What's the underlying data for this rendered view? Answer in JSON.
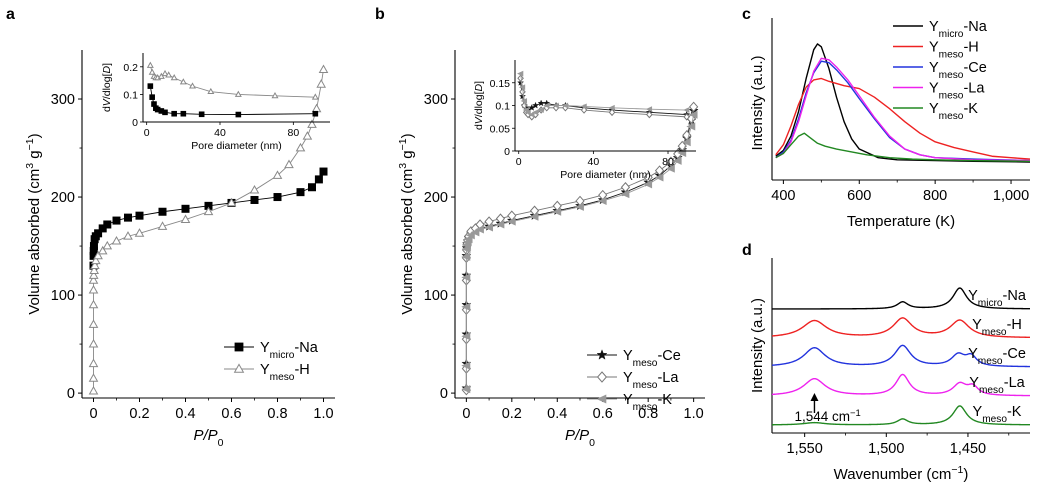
{
  "chart_data": [
    {
      "panel": "a",
      "type": "scatter",
      "xlabel": "P/P0",
      "ylabel": "Volume absorbed (cm3 g−1)",
      "xlim": [
        -0.05,
        1.05
      ],
      "ylim": [
        -5,
        350
      ],
      "xticks": [
        "0",
        "0.2",
        "0.4",
        "0.6",
        "0.8",
        "1.0"
      ],
      "yticks": [
        "0",
        "100",
        "200",
        "300"
      ],
      "legend_position": "lower-right",
      "series": [
        {
          "name": "Ymicro-Na",
          "label_main": "Y",
          "label_sub": "micro",
          "label_suffix": "-Na",
          "marker": "square-filled",
          "color": "#000000",
          "x": [
            0,
            0.0005,
            0.001,
            0.002,
            0.005,
            0.01,
            0.02,
            0.04,
            0.06,
            0.1,
            0.15,
            0.2,
            0.3,
            0.4,
            0.5,
            0.6,
            0.7,
            0.8,
            0.9,
            0.95,
            0.98,
            1.0
          ],
          "y": [
            130,
            140,
            145,
            150,
            157,
            160,
            163,
            168,
            172,
            176,
            179,
            181,
            185,
            188,
            191,
            194,
            197,
            200,
            205,
            210,
            218,
            226
          ]
        },
        {
          "name": "Ymeso-H",
          "label_main": "Y",
          "label_sub": "meso",
          "label_suffix": "-H",
          "marker": "triangle-open",
          "color": "#888888",
          "x": [
            0,
            0,
            0,
            0,
            0,
            0,
            0,
            0,
            0.001,
            0.003,
            0.006,
            0.01,
            0.02,
            0.04,
            0.06,
            0.1,
            0.15,
            0.2,
            0.3,
            0.4,
            0.5,
            0.6,
            0.7,
            0.8,
            0.85,
            0.9,
            0.93,
            0.95,
            0.97,
            0.99,
            1.0
          ],
          "y": [
            2,
            15,
            30,
            50,
            70,
            90,
            105,
            115,
            120,
            125,
            130,
            135,
            140,
            145,
            150,
            155,
            160,
            163,
            170,
            177,
            185,
            194,
            207,
            222,
            233,
            250,
            262,
            274,
            290,
            315,
            330
          ]
        }
      ],
      "inset": {
        "xlabel": "Pore diameter (nm)",
        "ylabel": "dV/dlog[D]",
        "xlim": [
          -2,
          100
        ],
        "ylim": [
          0,
          0.25
        ],
        "xticks": [
          "0",
          "40",
          "80"
        ],
        "yticks": [
          "0",
          "0.1",
          "0.2"
        ],
        "series": [
          {
            "name": "Ymicro-Na",
            "x": [
              2,
              3,
              4,
              5,
              6,
              8,
              10,
              15,
              20,
              30,
              50,
              92
            ],
            "y": [
              0.13,
              0.09,
              0.065,
              0.05,
              0.045,
              0.04,
              0.035,
              0.03,
              0.03,
              0.028,
              0.027,
              0.03
            ]
          },
          {
            "name": "Ymeso-H",
            "x": [
              2,
              3,
              4,
              5,
              6,
              8,
              10,
              12,
              15,
              20,
              25,
              35,
              50,
              70,
              92
            ],
            "y": [
              0.205,
              0.18,
              0.165,
              0.16,
              0.16,
              0.165,
              0.175,
              0.17,
              0.16,
              0.145,
              0.13,
              0.11,
              0.1,
              0.095,
              0.09
            ]
          }
        ]
      }
    },
    {
      "panel": "b",
      "type": "scatter",
      "xlabel": "P/P0",
      "ylabel": "Volume absorbed (cm3 g−1)",
      "xlim": [
        -0.05,
        1.05
      ],
      "ylim": [
        -5,
        350
      ],
      "xticks": [
        "0",
        "0.2",
        "0.4",
        "0.6",
        "0.8",
        "1.0"
      ],
      "yticks": [
        "0",
        "100",
        "200",
        "300"
      ],
      "legend_position": "lower-right",
      "series": [
        {
          "name": "Ymeso-Ce",
          "label_main": "Y",
          "label_sub": "meso",
          "label_suffix": "-Ce",
          "marker": "star-filled",
          "color": "#111111",
          "x": [
            0,
            0,
            0,
            0,
            0,
            0,
            0.001,
            0.003,
            0.006,
            0.01,
            0.02,
            0.04,
            0.06,
            0.1,
            0.15,
            0.2,
            0.3,
            0.4,
            0.5,
            0.6,
            0.7,
            0.8,
            0.85,
            0.9,
            0.93,
            0.95,
            0.97,
            0.99,
            1.0
          ],
          "y": [
            5,
            30,
            60,
            90,
            120,
            140,
            148,
            152,
            155,
            158,
            162,
            165,
            168,
            170,
            173,
            176,
            181,
            186,
            191,
            197,
            205,
            215,
            222,
            232,
            240,
            248,
            260,
            278,
            288
          ]
        },
        {
          "name": "Ymeso-La",
          "label_main": "Y",
          "label_sub": "meso",
          "label_suffix": "-La",
          "marker": "diamond-open",
          "color": "#777777",
          "x": [
            0,
            0,
            0,
            0,
            0,
            0,
            0.001,
            0.003,
            0.006,
            0.01,
            0.02,
            0.04,
            0.06,
            0.1,
            0.15,
            0.2,
            0.3,
            0.4,
            0.5,
            0.6,
            0.7,
            0.8,
            0.85,
            0.9,
            0.93,
            0.95,
            0.97,
            0.99,
            1.0
          ],
          "y": [
            3,
            25,
            55,
            85,
            115,
            138,
            146,
            152,
            156,
            160,
            165,
            168,
            172,
            175,
            178,
            181,
            186,
            191,
            196,
            202,
            210,
            220,
            227,
            236,
            244,
            252,
            263,
            280,
            292
          ]
        },
        {
          "name": "Ymeso-K",
          "label_main": "Y",
          "label_sub": "meso",
          "label_suffix": "-K",
          "marker": "triangle-left-filled",
          "color": "#999999",
          "x": [
            0,
            0,
            0,
            0,
            0,
            0,
            0.001,
            0.003,
            0.006,
            0.01,
            0.02,
            0.04,
            0.06,
            0.1,
            0.15,
            0.2,
            0.3,
            0.4,
            0.5,
            0.6,
            0.7,
            0.8,
            0.85,
            0.9,
            0.93,
            0.95,
            0.97,
            0.99,
            1.0
          ],
          "y": [
            4,
            28,
            58,
            88,
            118,
            139,
            147,
            151,
            154,
            157,
            161,
            164,
            167,
            169,
            172,
            175,
            180,
            185,
            190,
            196,
            203,
            213,
            220,
            229,
            237,
            245,
            256,
            272,
            284
          ]
        }
      ],
      "inset": {
        "xlabel": "Pore diameter (nm)",
        "ylabel": "dV/dlog[D]",
        "xlim": [
          -2,
          95
        ],
        "ylim": [
          0,
          0.2
        ],
        "xticks": [
          "0",
          "40",
          "80"
        ],
        "yticks": [
          "0",
          "0.05",
          "0.1",
          "0.15"
        ],
        "series": [
          {
            "name": "Ymeso-Ce",
            "x": [
              1,
              2,
              3,
              4,
              5,
              7,
              9,
              12,
              15,
              20,
              25,
              35,
              50,
              70,
              90
            ],
            "y": [
              0.15,
              0.12,
              0.1,
              0.095,
              0.09,
              0.095,
              0.1,
              0.105,
              0.105,
              0.1,
              0.1,
              0.095,
              0.09,
              0.085,
              0.08
            ]
          },
          {
            "name": "Ymeso-La",
            "x": [
              1,
              2,
              3,
              4,
              5,
              7,
              9,
              12,
              15,
              20,
              25,
              35,
              50,
              70,
              90
            ],
            "y": [
              0.16,
              0.13,
              0.1,
              0.085,
              0.08,
              0.075,
              0.08,
              0.09,
              0.095,
              0.095,
              0.095,
              0.09,
              0.085,
              0.08,
              0.075
            ]
          },
          {
            "name": "Ymeso-K",
            "x": [
              1,
              2,
              3,
              4,
              5,
              7,
              9,
              12,
              15,
              20,
              25,
              35,
              50,
              70,
              90
            ],
            "y": [
              0.17,
              0.14,
              0.11,
              0.09,
              0.085,
              0.08,
              0.085,
              0.09,
              0.1,
              0.1,
              0.1,
              0.098,
              0.095,
              0.092,
              0.09
            ]
          }
        ]
      }
    },
    {
      "panel": "c",
      "type": "line",
      "xlabel": "Temperature (K)",
      "ylabel": "Intensity (a.u.)",
      "xlim": [
        370,
        1050
      ],
      "xticks": [
        "400",
        "600",
        "800",
        "1,000"
      ],
      "legend_position": "top-right",
      "series": [
        {
          "name": "Ymicro-Na",
          "label_main": "Y",
          "label_sub": "micro",
          "label_suffix": "-Na",
          "color": "#000000",
          "x": [
            380,
            400,
            420,
            440,
            460,
            480,
            490,
            500,
            520,
            540,
            560,
            580,
            600,
            650,
            700,
            800,
            900,
            1050
          ],
          "y": [
            0.04,
            0.08,
            0.18,
            0.35,
            0.58,
            0.78,
            0.82,
            0.8,
            0.65,
            0.45,
            0.28,
            0.16,
            0.09,
            0.03,
            0.015,
            0.01,
            0.005,
            0
          ]
        },
        {
          "name": "Ymeso-H",
          "label_main": "Y",
          "label_sub": "meso",
          "label_suffix": "-H",
          "color": "#ee2222",
          "x": [
            380,
            400,
            420,
            440,
            460,
            480,
            500,
            520,
            560,
            600,
            640,
            680,
            720,
            760,
            800,
            850,
            900,
            950,
            1000,
            1050
          ],
          "y": [
            0.05,
            0.12,
            0.25,
            0.4,
            0.52,
            0.57,
            0.58,
            0.56,
            0.53,
            0.51,
            0.45,
            0.37,
            0.28,
            0.2,
            0.14,
            0.1,
            0.07,
            0.04,
            0.03,
            0.02
          ]
        },
        {
          "name": "Ymeso-Ce",
          "label_main": "Y",
          "label_sub": "meso",
          "label_suffix": "-Ce",
          "color": "#2233dd",
          "x": [
            380,
            400,
            420,
            440,
            460,
            480,
            500,
            520,
            540,
            570,
            600,
            640,
            680,
            720,
            760,
            800,
            900,
            1050
          ],
          "y": [
            0.03,
            0.07,
            0.15,
            0.3,
            0.48,
            0.62,
            0.7,
            0.69,
            0.64,
            0.55,
            0.44,
            0.3,
            0.17,
            0.09,
            0.05,
            0.03,
            0.02,
            0.01
          ]
        },
        {
          "name": "Ymeso-La",
          "label_main": "Y",
          "label_sub": "meso",
          "label_suffix": "-La",
          "color": "#ee22ee",
          "x": [
            380,
            400,
            420,
            440,
            460,
            480,
            500,
            520,
            540,
            570,
            600,
            640,
            680,
            720,
            760,
            800,
            900,
            1050
          ],
          "y": [
            0.03,
            0.06,
            0.14,
            0.28,
            0.46,
            0.63,
            0.72,
            0.71,
            0.66,
            0.57,
            0.46,
            0.31,
            0.18,
            0.09,
            0.05,
            0.03,
            0.015,
            0.01
          ]
        },
        {
          "name": "Ymeso-K",
          "label_main": "Y",
          "label_sub": "meso",
          "label_suffix": "-K",
          "color": "#228822",
          "x": [
            380,
            400,
            420,
            440,
            455,
            470,
            490,
            510,
            540,
            580,
            620,
            680,
            740,
            800,
            900,
            1050
          ],
          "y": [
            0.03,
            0.06,
            0.12,
            0.18,
            0.2,
            0.17,
            0.13,
            0.11,
            0.09,
            0.07,
            0.05,
            0.03,
            0.02,
            0.015,
            0.01,
            0.005
          ]
        }
      ]
    },
    {
      "panel": "d",
      "type": "line",
      "xlabel": "Wavenumber (cm−1)",
      "ylabel": "Intensity (a.u.)",
      "xlim": [
        1570,
        1412
      ],
      "xticks": [
        "1,550",
        "1,500",
        "1,450"
      ],
      "annotation": {
        "text": "1,544 cm",
        "superscript": "−1",
        "x": 1544
      },
      "series": [
        {
          "name": "Ymicro-Na",
          "label_main": "Y",
          "label_sub": "micro",
          "label_suffix": "-Na",
          "color": "#000000",
          "offset": 4,
          "peaks": [
            [
              1490,
              0.18,
              4
            ],
            [
              1455,
              0.55,
              5
            ]
          ]
        },
        {
          "name": "Ymeso-H",
          "label_main": "Y",
          "label_sub": "meso",
          "label_suffix": "-H",
          "color": "#ee2222",
          "offset": 3,
          "peaks": [
            [
              1544,
              0.45,
              9
            ],
            [
              1490,
              0.5,
              7
            ],
            [
              1455,
              0.45,
              7
            ]
          ]
        },
        {
          "name": "Ymeso-Ce",
          "label_main": "Y",
          "label_sub": "meso",
          "label_suffix": "-Ce",
          "color": "#2233dd",
          "offset": 2,
          "peaks": [
            [
              1544,
              0.5,
              8
            ],
            [
              1490,
              0.55,
              6
            ],
            [
              1456,
              0.3,
              5
            ],
            [
              1448,
              0.25,
              4
            ]
          ]
        },
        {
          "name": "Ymeso-La",
          "label_main": "Y",
          "label_sub": "meso",
          "label_suffix": "-La",
          "color": "#ee22ee",
          "offset": 1,
          "peaks": [
            [
              1544,
              0.45,
              8
            ],
            [
              1490,
              0.55,
              5
            ],
            [
              1455,
              0.3,
              5
            ],
            [
              1447,
              0.22,
              4
            ]
          ]
        },
        {
          "name": "Ymeso-K",
          "label_main": "Y",
          "label_sub": "meso",
          "label_suffix": "-K",
          "color": "#228822",
          "offset": 0,
          "peaks": [
            [
              1544,
              0.06,
              8
            ],
            [
              1490,
              0.15,
              4
            ],
            [
              1455,
              0.5,
              5
            ]
          ]
        }
      ]
    }
  ]
}
